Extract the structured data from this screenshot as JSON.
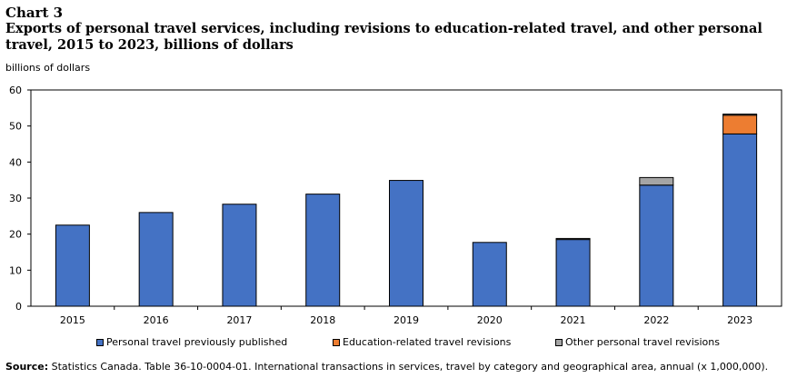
{
  "header": {
    "chart_label": "Chart 3",
    "title": "Exports of personal travel services, including  revisions to education-related travel, and other personal travel, 2015 to 2023, billions  of dollars"
  },
  "source": {
    "label": "Source:",
    "text": "Statistics Canada. Table 36-10-0004-01. International transactions in services, travel by category and geographical area, annual (x 1,000,000)."
  },
  "chart_data": {
    "type": "bar",
    "stacked": true,
    "title": "Exports of personal travel services, including  revisions to education-related travel, and other personal travel, 2015 to 2023, billions  of dollars",
    "ylabel": "billions of dollars",
    "xlabel": "",
    "ylim": [
      0,
      60
    ],
    "yticks": [
      0,
      10,
      20,
      30,
      40,
      50,
      60
    ],
    "grid": false,
    "legend_position": "bottom",
    "categories": [
      "2015",
      "2016",
      "2017",
      "2018",
      "2019",
      "2020",
      "2021",
      "2022",
      "2023"
    ],
    "series": [
      {
        "name": "Personal travel previously published",
        "color": "#4472c4",
        "values": [
          22.5,
          26.0,
          28.3,
          31.1,
          34.9,
          17.7,
          18.5,
          33.6,
          47.8
        ]
      },
      {
        "name": "Education-related travel revisions",
        "color": "#ed7d31",
        "values": [
          0,
          0,
          0,
          0,
          0,
          0,
          0,
          0,
          5.2
        ]
      },
      {
        "name": "Other personal travel revisions",
        "color": "#a5a5a5",
        "values": [
          0,
          0,
          0,
          0,
          0,
          0,
          0.3,
          2.1,
          0.3
        ]
      }
    ]
  }
}
